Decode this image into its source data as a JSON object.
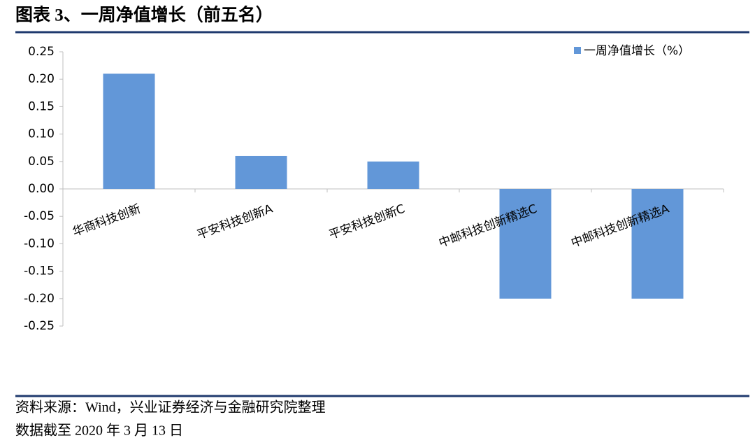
{
  "header": {
    "title": "图表 3、一周净值增长（前五名）"
  },
  "chart_data": {
    "type": "bar",
    "categories": [
      "华商科技创新",
      "平安科技创新A",
      "平安科技创新C",
      "中邮科技创新精选C",
      "中邮科技创新精选A"
    ],
    "series": [
      {
        "name": "一周净值增长（%）",
        "color": "#6297d8",
        "values": [
          0.21,
          0.06,
          0.05,
          -0.2,
          -0.2
        ]
      }
    ],
    "ylim": [
      -0.25,
      0.25
    ],
    "yticks": [
      0.25,
      {
        "value": 0.2,
        "label": "0.20"
      },
      0.15,
      {
        "value": 0.1,
        "label": "0.10"
      },
      0.05,
      {
        "value": 0,
        "label": "0.00"
      },
      -0.05,
      {
        "value": -0.1,
        "label": "-0.10"
      },
      -0.15,
      {
        "value": -0.2,
        "label": "-0.20"
      },
      -0.25
    ],
    "grid": false,
    "legend": "top-right"
  },
  "footer": {
    "source": "资料来源：Wind，兴业证券经济与金融研究院整理",
    "date": "数据截至 2020 年 3 月 13 日"
  }
}
